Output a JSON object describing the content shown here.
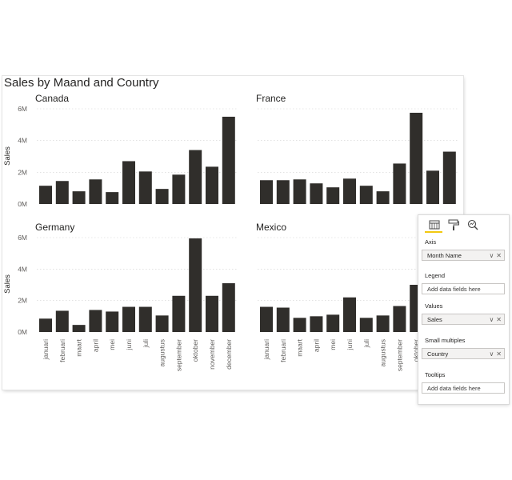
{
  "visual": {
    "title": "Sales by Maand and Country",
    "y_axis_label": "Sales",
    "colors": {
      "bar": "#302e2b",
      "text": "#252423",
      "tick": "#605e5c",
      "grid": "#d0d0d0"
    }
  },
  "chart_data": {
    "type": "bar",
    "small_multiples": true,
    "title": "Sales by Maand and Country",
    "ylabel": "Sales",
    "ylim": [
      0,
      6000000
    ],
    "yticks": [
      "0M",
      "2M",
      "4M",
      "6M"
    ],
    "categories": [
      "januari",
      "februari",
      "maart",
      "april",
      "mei",
      "juni",
      "juli",
      "augustus",
      "september",
      "oktober",
      "november",
      "december"
    ],
    "series": [
      {
        "name": "Canada",
        "values": [
          1150000,
          1450000,
          800000,
          1550000,
          750000,
          2700000,
          2050000,
          950000,
          1850000,
          3400000,
          2350000,
          5500000
        ]
      },
      {
        "name": "France",
        "values": [
          1500000,
          1500000,
          1550000,
          1300000,
          1050000,
          1600000,
          1150000,
          800000,
          2550000,
          5750000,
          2100000,
          3300000
        ]
      },
      {
        "name": "Germany",
        "values": [
          850000,
          1350000,
          450000,
          1400000,
          1300000,
          1600000,
          1600000,
          1050000,
          2300000,
          5950000,
          2300000,
          3100000
        ]
      },
      {
        "name": "Mexico",
        "values": [
          1600000,
          1550000,
          900000,
          1000000,
          1100000,
          2200000,
          900000,
          1050000,
          1650000,
          3000000,
          null,
          null
        ]
      }
    ]
  },
  "panel": {
    "tabs": [
      {
        "name": "build-visual-icon"
      },
      {
        "name": "format-paintroller-icon"
      },
      {
        "name": "analytics-magnifier-icon"
      }
    ],
    "wells": [
      {
        "label": "Axis",
        "value": "Month Name",
        "filled": true
      },
      {
        "label": "Legend",
        "value": "Add data fields here",
        "filled": false
      },
      {
        "label": "Values",
        "value": "Sales",
        "filled": true
      },
      {
        "label": "Small multiples",
        "value": "Country",
        "filled": true
      },
      {
        "label": "Tooltips",
        "value": "Add data fields here",
        "filled": false
      }
    ]
  }
}
